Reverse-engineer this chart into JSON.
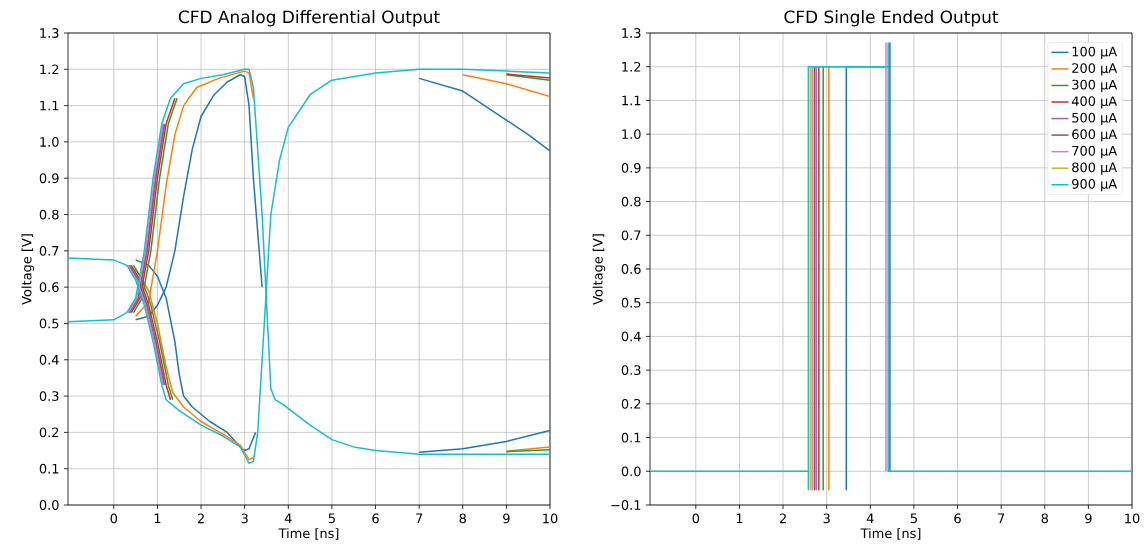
{
  "chart_data": [
    {
      "type": "line",
      "title": "CFD Analog Differential Output",
      "xlabel": "Time [ns]",
      "ylabel": "Voltage [V]",
      "xlim": [
        -1.05,
        10
      ],
      "ylim": [
        0,
        1.3
      ],
      "xticks": [
        0,
        1,
        2,
        3,
        4,
        5,
        6,
        7,
        8,
        9,
        10
      ],
      "yticks": [
        {
          "value": 0,
          "label": "0.0"
        },
        {
          "value": 0.1,
          "label": "0.1"
        },
        {
          "value": 0.2,
          "label": "0.2"
        },
        {
          "value": 0.3,
          "label": "0.3"
        },
        {
          "value": 0.4,
          "label": "0.4"
        },
        {
          "value": 0.5,
          "label": "0.5"
        },
        {
          "value": 0.6,
          "label": "0.6"
        },
        {
          "value": 0.7,
          "label": "0.7"
        },
        {
          "value": 0.8,
          "label": "0.8"
        },
        {
          "value": 0.9,
          "label": "0.9"
        },
        {
          "value": 1.0,
          "label": "1.0"
        },
        {
          "value": 1.1,
          "label": "1.1"
        },
        {
          "value": 1.2,
          "label": "1.2"
        },
        {
          "value": 1.3,
          "label": "1.3"
        }
      ],
      "grid": true,
      "legend": false,
      "series": [
        {
          "color": "#1f77b4",
          "x": [
            0.5,
            0.8,
            1,
            1.2,
            1.4,
            1.6,
            1.8,
            2,
            2.3,
            2.6,
            2.9,
            3,
            3.1,
            3.2,
            3.4
          ],
          "values": [
            0.51,
            0.52,
            0.55,
            0.6,
            0.7,
            0.85,
            0.98,
            1.07,
            1.13,
            1.165,
            1.185,
            1.18,
            1.1,
            0.9,
            0.6
          ]
        },
        {
          "color": "#1f77b4",
          "x": [
            7,
            8,
            9,
            10
          ],
          "values": [
            0.145,
            0.155,
            0.175,
            0.205
          ]
        },
        {
          "color": "#1f77b4",
          "x": [
            0.5,
            0.8,
            1,
            1.2,
            1.4,
            1.5,
            1.6,
            1.8,
            2.2,
            2.6,
            2.9,
            3,
            3.1,
            3.25
          ],
          "values": [
            0.675,
            0.66,
            0.63,
            0.57,
            0.45,
            0.36,
            0.3,
            0.27,
            0.23,
            0.2,
            0.16,
            0.15,
            0.155,
            0.2
          ]
        },
        {
          "color": "#1f77b4",
          "x": [
            7,
            8,
            9,
            9.5,
            10
          ],
          "values": [
            1.175,
            1.14,
            1.06,
            1.02,
            0.975
          ]
        },
        {
          "color": "#ff7f0e",
          "x": [
            0.5,
            0.8,
            1,
            1.2,
            1.4,
            1.6,
            1.9,
            2.4,
            3,
            3.1,
            3.2
          ],
          "values": [
            0.52,
            0.56,
            0.7,
            0.88,
            1.02,
            1.1,
            1.15,
            1.175,
            1.195,
            1.19,
            1.12
          ]
        },
        {
          "color": "#ff7f0e",
          "x": [
            9,
            10
          ],
          "values": [
            0.148,
            0.16
          ]
        },
        {
          "color": "#ff7f0e",
          "x": [
            0.5,
            0.8,
            1,
            1.2,
            1.35,
            1.6,
            2,
            2.5,
            2.9,
            3.1,
            3.2
          ],
          "values": [
            0.65,
            0.59,
            0.5,
            0.38,
            0.31,
            0.27,
            0.23,
            0.195,
            0.165,
            0.125,
            0.13
          ]
        },
        {
          "color": "#ff7f0e",
          "x": [
            8,
            9,
            10
          ],
          "values": [
            1.185,
            1.16,
            1.125
          ]
        },
        {
          "color": "#2ca02c",
          "x": [
            0.45,
            0.65,
            0.85,
            1.05,
            1.25,
            1.45
          ],
          "values": [
            0.53,
            0.57,
            0.7,
            0.9,
            1.05,
            1.12
          ]
        },
        {
          "color": "#2ca02c",
          "x": [
            9,
            10
          ],
          "values": [
            0.147,
            0.152
          ]
        },
        {
          "color": "#2ca02c",
          "x": [
            0.45,
            0.65,
            0.85,
            1.05,
            1.25,
            1.35
          ],
          "values": [
            0.66,
            0.62,
            0.55,
            0.45,
            0.33,
            0.29
          ]
        },
        {
          "color": "#2ca02c",
          "x": [
            9,
            10
          ],
          "values": [
            1.185,
            1.17
          ]
        },
        {
          "color": "#d62728",
          "x": [
            0.4,
            0.6,
            0.8,
            1,
            1.2,
            1.4
          ],
          "values": [
            0.53,
            0.57,
            0.7,
            0.9,
            1.05,
            1.12
          ]
        },
        {
          "color": "#d62728",
          "x": [
            0.4,
            0.6,
            0.8,
            1,
            1.2,
            1.3
          ],
          "values": [
            0.66,
            0.62,
            0.55,
            0.45,
            0.33,
            0.29
          ]
        },
        {
          "color": "#d62728",
          "x": [
            9,
            10
          ],
          "values": [
            1.187,
            1.176
          ]
        },
        {
          "color": "#9467bd",
          "x": [
            0.37,
            0.57,
            0.77,
            0.97,
            1.17
          ],
          "values": [
            0.53,
            0.57,
            0.7,
            0.9,
            1.05
          ]
        },
        {
          "color": "#9467bd",
          "x": [
            0.37,
            0.57,
            0.77,
            0.97,
            1.17
          ],
          "values": [
            0.66,
            0.62,
            0.55,
            0.45,
            0.33
          ]
        },
        {
          "color": "#8c564b",
          "x": [
            0.35,
            0.55,
            0.75,
            0.95,
            1.15
          ],
          "values": [
            0.53,
            0.57,
            0.7,
            0.9,
            1.05
          ]
        },
        {
          "color": "#8c564b",
          "x": [
            0.35,
            0.55,
            0.75,
            0.95,
            1.15
          ],
          "values": [
            0.66,
            0.62,
            0.55,
            0.45,
            0.33
          ]
        },
        {
          "color": "#e377c2",
          "x": [
            0.33,
            0.53,
            0.73,
            0.93,
            1.13
          ],
          "values": [
            0.53,
            0.57,
            0.7,
            0.9,
            1.05
          ]
        },
        {
          "color": "#e377c2",
          "x": [
            0.33,
            0.53,
            0.73,
            0.93,
            1.13
          ],
          "values": [
            0.66,
            0.62,
            0.55,
            0.45,
            0.33
          ]
        },
        {
          "color": "#17becf",
          "x": [
            -1.05,
            0,
            0.3,
            0.5,
            0.7,
            0.9,
            1.1,
            1.3,
            1.6,
            2,
            2.5,
            3,
            3.1,
            3.2,
            3.4,
            3.6,
            3.7,
            3.9,
            4.5,
            5,
            5.5,
            6,
            7,
            8,
            9,
            10
          ],
          "values": [
            0.505,
            0.51,
            0.53,
            0.57,
            0.7,
            0.9,
            1.05,
            1.12,
            1.16,
            1.175,
            1.185,
            1.2,
            1.2,
            1.15,
            0.8,
            0.32,
            0.29,
            0.275,
            0.22,
            0.18,
            0.16,
            0.15,
            0.14,
            0.14,
            0.14,
            0.14
          ]
        },
        {
          "color": "#17becf",
          "x": [
            -1.05,
            0,
            0.3,
            0.5,
            0.7,
            0.9,
            1.1,
            1.2,
            1.5,
            2,
            2.5,
            2.9,
            3.1,
            3.2,
            3.3,
            3.45,
            3.6,
            3.8,
            4,
            4.5,
            5,
            6,
            7,
            8,
            9,
            10
          ],
          "values": [
            0.68,
            0.675,
            0.66,
            0.62,
            0.55,
            0.45,
            0.33,
            0.29,
            0.26,
            0.22,
            0.19,
            0.16,
            0.115,
            0.12,
            0.2,
            0.5,
            0.8,
            0.95,
            1.04,
            1.13,
            1.17,
            1.19,
            1.2,
            1.2,
            1.195,
            1.19
          ]
        }
      ]
    },
    {
      "type": "line",
      "title": "CFD Single Ended Output",
      "xlabel": "Time [ns]",
      "ylabel": "Voltage [V]",
      "xlim": [
        -1.05,
        10
      ],
      "ylim": [
        -0.1,
        1.3
      ],
      "xticks": [
        0,
        1,
        2,
        3,
        4,
        5,
        6,
        7,
        8,
        9,
        10
      ],
      "yticks": [
        {
          "value": -0.1,
          "label": "−0.1"
        },
        {
          "value": 0,
          "label": "0.0"
        },
        {
          "value": 0.1,
          "label": "0.1"
        },
        {
          "value": 0.2,
          "label": "0.2"
        },
        {
          "value": 0.3,
          "label": "0.3"
        },
        {
          "value": 0.4,
          "label": "0.4"
        },
        {
          "value": 0.5,
          "label": "0.5"
        },
        {
          "value": 0.6,
          "label": "0.6"
        },
        {
          "value": 0.7,
          "label": "0.7"
        },
        {
          "value": 0.8,
          "label": "0.8"
        },
        {
          "value": 0.9,
          "label": "0.9"
        },
        {
          "value": 1.0,
          "label": "1.0"
        },
        {
          "value": 1.1,
          "label": "1.1"
        },
        {
          "value": 1.2,
          "label": "1.2"
        },
        {
          "value": 1.3,
          "label": "1.3"
        }
      ],
      "grid": true,
      "legend": "top right",
      "series": [
        {
          "name": "100 µA",
          "color": "#1f77b4",
          "x": [
            3.45,
            3.45,
            3.45,
            4.45,
            4.45,
            4.45
          ],
          "values": [
            0,
            -0.055,
            1.2,
            1.2,
            1.27,
            0
          ]
        },
        {
          "name": "200 µA",
          "color": "#ff7f0e",
          "x": [
            3.05,
            3.05,
            3.05
          ],
          "values": [
            0,
            -0.055,
            1.2
          ]
        },
        {
          "name": "300 µA",
          "color": "#2ca02c",
          "x": [
            2.92,
            2.92,
            2.92
          ],
          "values": [
            0,
            -0.055,
            1.2
          ]
        },
        {
          "name": "400 µA",
          "color": "#d62728",
          "x": [
            2.82,
            2.82,
            2.82
          ],
          "values": [
            0,
            -0.055,
            1.2
          ]
        },
        {
          "name": "500 µA",
          "color": "#9467bd",
          "x": [
            2.76,
            2.76,
            2.76
          ],
          "values": [
            0,
            -0.055,
            1.2
          ]
        },
        {
          "name": "600 µA",
          "color": "#8c564b",
          "x": [
            2.72,
            2.72,
            2.72
          ],
          "values": [
            0,
            -0.055,
            1.2
          ]
        },
        {
          "name": "700 µA",
          "color": "#e377c2",
          "x": [
            2.67,
            2.67,
            2.67,
            4.36,
            4.36,
            4.36
          ],
          "values": [
            0,
            -0.055,
            1.2,
            1.2,
            1.27,
            0
          ]
        },
        {
          "name": "800 µA",
          "color": "#bcbd22",
          "x": [
            2.63,
            2.63,
            2.63
          ],
          "values": [
            0,
            -0.055,
            1.2
          ]
        },
        {
          "name": "900 µA",
          "color": "#17becf",
          "x": [
            -1.05,
            2.58,
            2.58,
            2.58,
            4.41,
            4.41,
            4.41,
            10
          ],
          "values": [
            0,
            0,
            -0.055,
            1.2,
            1.2,
            1.27,
            0,
            0
          ]
        }
      ]
    }
  ]
}
